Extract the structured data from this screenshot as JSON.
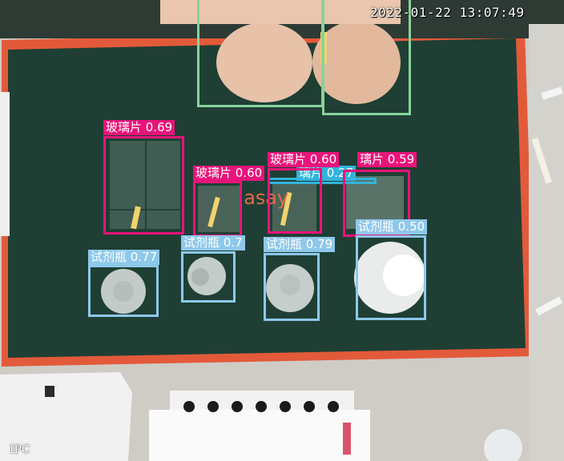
{
  "overlay": {
    "timestamp": "2022-01-22 13:07:49",
    "camera_tag": "IPC"
  },
  "colors": {
    "glass_slide": "#e8147a",
    "reagent_bottle": "#8ec8ea",
    "hand": "#86d39a",
    "cyan_box": "#32b4dc"
  },
  "detections": [
    {
      "class": "hand",
      "label": ""
    },
    {
      "class": "hand",
      "label": ""
    },
    {
      "class": "glass_slide",
      "label": "玻璃片 0.69"
    },
    {
      "class": "glass_slide",
      "label": "玻璃片 0.60"
    },
    {
      "class": "glass_slide",
      "label": "玻璃片 0.60"
    },
    {
      "class": "glass_slide",
      "label": "璃片 0.59"
    },
    {
      "class": "cyan_box",
      "label": "璃片 0.27"
    },
    {
      "class": "reagent_bottle",
      "label": "试剂瓶 0.77"
    },
    {
      "class": "reagent_bottle",
      "label": "试剂瓶 0.7"
    },
    {
      "class": "reagent_bottle",
      "label": "试剂瓶 0.79"
    },
    {
      "class": "reagent_bottle",
      "label": "试剂瓶 0.50"
    }
  ]
}
